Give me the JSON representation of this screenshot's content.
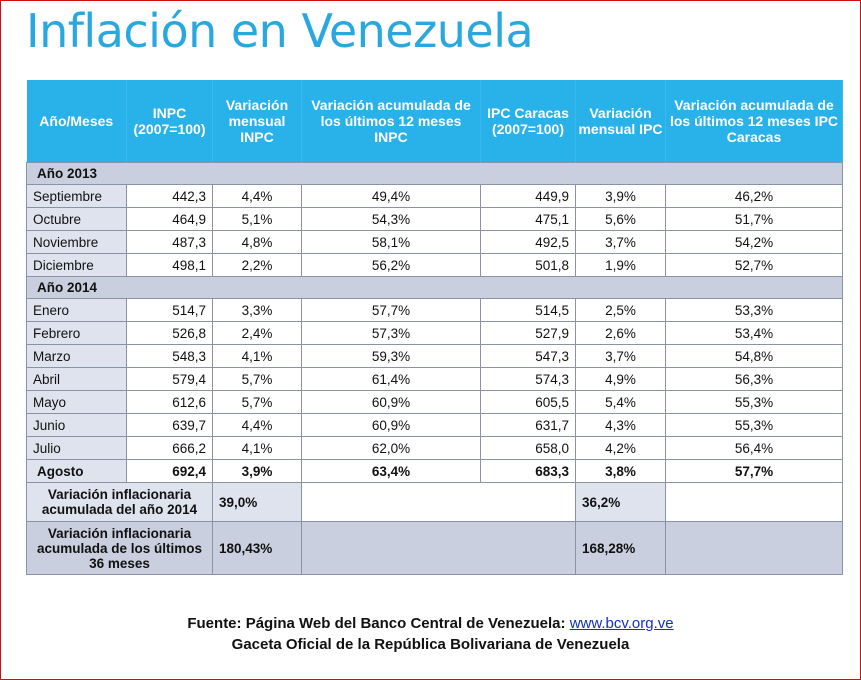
{
  "title": "Inflación en Venezuela",
  "headers": [
    "Año/Meses",
    "INPC (2007=100)",
    "Variación mensual INPC",
    "Variación acumulada de los últimos 12 meses INPC",
    "IPC Caracas (2007=100)",
    "Variación mensual IPC",
    "Variación acumulada de los últimos 12 meses IPC Caracas"
  ],
  "year2013": {
    "label": "Año 2013",
    "rows": [
      [
        "Septiembre",
        "442,3",
        "4,4%",
        "49,4%",
        "449,9",
        "3,9%",
        "46,2%"
      ],
      [
        "Octubre",
        "464,9",
        "5,1%",
        "54,3%",
        "475,1",
        "5,6%",
        "51,7%"
      ],
      [
        "Noviembre",
        "487,3",
        "4,8%",
        "58,1%",
        "492,5",
        "3,7%",
        "54,2%"
      ],
      [
        "Diciembre",
        "498,1",
        "2,2%",
        "56,2%",
        "501,8",
        "1,9%",
        "52,7%"
      ]
    ]
  },
  "year2014": {
    "label": "Año 2014",
    "rows": [
      [
        "Enero",
        "514,7",
        "3,3%",
        "57,7%",
        "514,5",
        "2,5%",
        "53,3%"
      ],
      [
        "Febrero",
        "526,8",
        "2,4%",
        "57,3%",
        "527,9",
        "2,6%",
        "53,4%"
      ],
      [
        "Marzo",
        "548,3",
        "4,1%",
        "59,3%",
        "547,3",
        "3,7%",
        "54,8%"
      ],
      [
        "Abril",
        "579,4",
        "5,7%",
        "61,4%",
        "574,3",
        "4,9%",
        "56,3%"
      ],
      [
        "Mayo",
        "612,6",
        "5,7%",
        "60,9%",
        "605,5",
        "5,4%",
        "55,3%"
      ],
      [
        "Junio",
        "639,7",
        "4,4%",
        "60,9%",
        "631,7",
        "4,3%",
        "55,3%"
      ],
      [
        "Julio",
        "666,2",
        "4,1%",
        "62,0%",
        "658,0",
        "4,2%",
        "56,4%"
      ],
      [
        "Agosto",
        "692,4",
        "3,9%",
        "63,4%",
        "683,3",
        "3,8%",
        "57,7%"
      ]
    ]
  },
  "summary": {
    "annual_label": "Variación inflacionaria acumulada del año 2014",
    "annual_inpc": "39,0%",
    "annual_ipc": "36,2%",
    "triennial_label": "Variación inflacionaria acumulada de los últimos 36 meses",
    "triennial_inpc": "180,43%",
    "triennial_ipc": "168,28%"
  },
  "footer": {
    "source_prefix": "Fuente: Página Web del Banco Central de Venezuela:",
    "source_link": "www.bcv.org.ve",
    "line2": "Gaceta Oficial de la República Bolivariana de Venezuela"
  }
}
